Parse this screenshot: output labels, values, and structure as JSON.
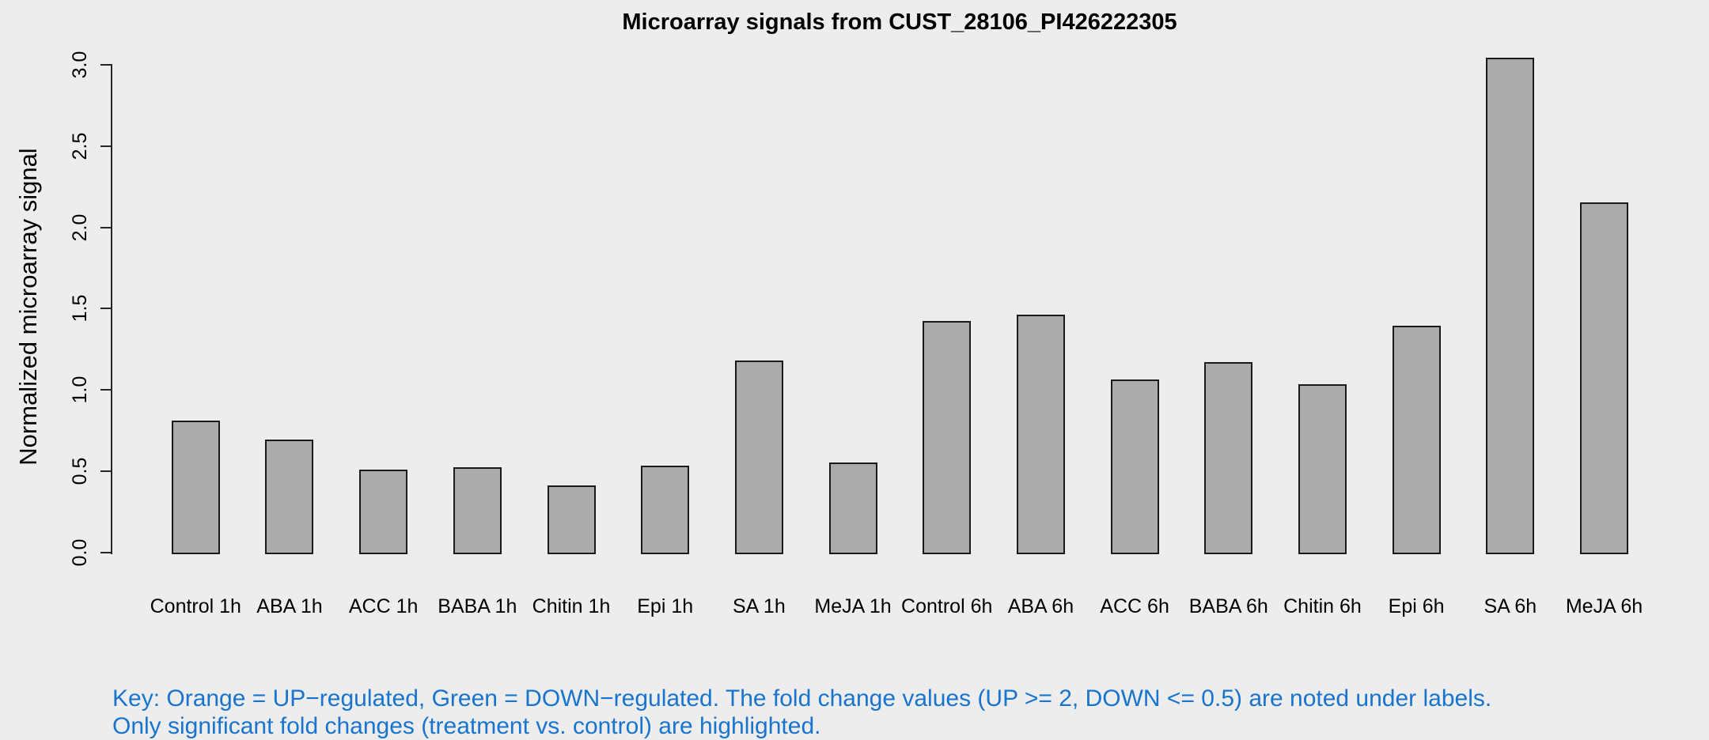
{
  "chart_data": {
    "type": "bar",
    "title": "Microarray signals from CUST_28106_PI426222305",
    "xlabel": "",
    "ylabel": "Normalized microarray signal",
    "categories": [
      "Control 1h",
      "ABA 1h",
      "ACC 1h",
      "BABA 1h",
      "Chitin 1h",
      "Epi 1h",
      "SA 1h",
      "MeJA 1h",
      "Control 6h",
      "ABA 6h",
      "ACC 6h",
      "BABA 6h",
      "Chitin 6h",
      "Epi 6h",
      "SA 6h",
      "MeJA 6h"
    ],
    "values": [
      0.82,
      0.7,
      0.52,
      0.53,
      0.42,
      0.54,
      1.19,
      0.56,
      1.43,
      1.47,
      1.07,
      1.18,
      1.04,
      1.4,
      3.05,
      2.16
    ],
    "ylim": [
      0,
      3.0
    ],
    "yticks": [
      0.0,
      0.5,
      1.0,
      1.5,
      2.0,
      2.5,
      3.0
    ],
    "ytick_labels": [
      "0.0",
      "0.5",
      "1.0",
      "1.5",
      "2.0",
      "2.5",
      "3.0"
    ],
    "grid": false,
    "legend_position": "none",
    "bar_fill": "#ABABAB",
    "bar_border": "#1A1A1A"
  },
  "footer": {
    "line1": "Key: Orange = UP−regulated, Green = DOWN−regulated. The fold change values (UP >= 2, DOWN <= 0.5) are noted under labels.",
    "line2": "Only significant fold changes (treatment vs. control) are highlighted.",
    "color": "#1874CD"
  },
  "colors": {
    "background": "#EDEDED",
    "axis": "#262626",
    "text": "#000000"
  }
}
